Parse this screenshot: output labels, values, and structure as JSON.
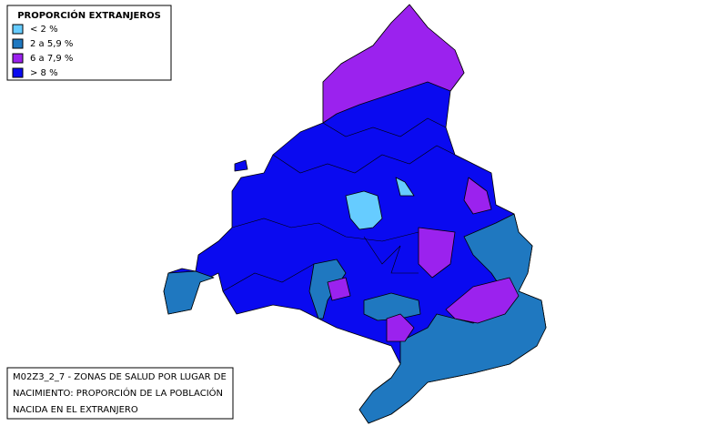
{
  "legend": {
    "title": "PROPORCIÓN EXTRANJEROS",
    "items": [
      {
        "label": "< 2 %",
        "color": "#66ccff"
      },
      {
        "label": "2 a 5,9 %",
        "color": "#1f78c0"
      },
      {
        "label": "6 a 7,9 %",
        "color": "#9b22ee"
      },
      {
        "label": "> 8 %",
        "color": "#0a0af0"
      }
    ]
  },
  "caption": {
    "lines": [
      "M02Z3_2_7 - ZONAS DE SALUD POR LUGAR DE",
      "NACIMIENTO: PROPORCIÓN DE LA POBLACIÓN",
      "NACIDA EN EL EXTRANJERO"
    ]
  }
}
